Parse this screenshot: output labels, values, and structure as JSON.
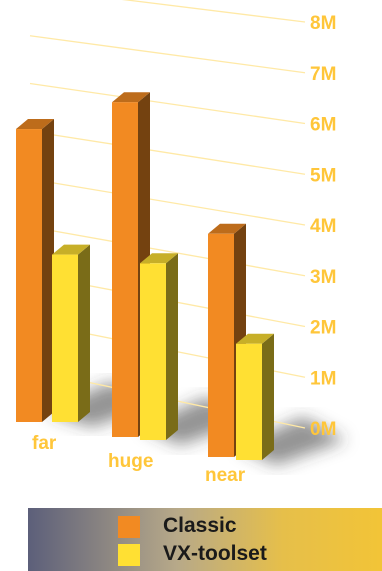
{
  "chart_data": {
    "type": "bar",
    "categories": [
      "far",
      "huge",
      "near"
    ],
    "series": [
      {
        "name": "Classic",
        "values": [
          6.3,
          7.2,
          4.8
        ],
        "color": "#f28a22"
      },
      {
        "name": "VX-toolset",
        "values": [
          3.6,
          3.8,
          2.5
        ],
        "color": "#ffe033"
      }
    ],
    "y_ticks": [
      "0M",
      "1M",
      "2M",
      "3M",
      "4M",
      "5M",
      "6M",
      "7M",
      "8M"
    ],
    "ylim": [
      0,
      8
    ],
    "grid": true,
    "legend_position": "bottom",
    "label_color": "#ffc63a"
  },
  "legend": {
    "items": [
      {
        "label": "Classic",
        "color": "#f28a22"
      },
      {
        "label": "VX-toolset",
        "color": "#ffe033"
      }
    ]
  }
}
